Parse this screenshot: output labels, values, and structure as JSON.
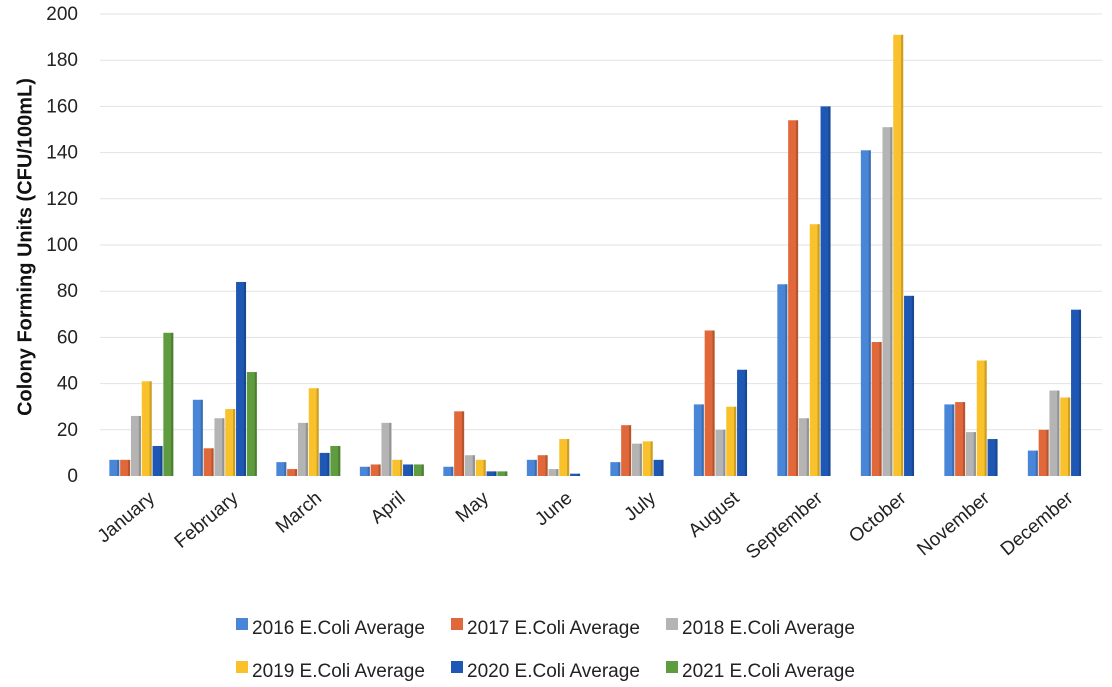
{
  "chart_data": {
    "type": "bar",
    "title": "",
    "xlabel": "",
    "ylabel": "Colony Forming Units (CFU/100mL)",
    "ylim": [
      0,
      200
    ],
    "yticks": [
      0,
      20,
      40,
      60,
      80,
      100,
      120,
      140,
      160,
      180,
      200
    ],
    "grid": true,
    "legend_position": "bottom",
    "categories": [
      "January",
      "February",
      "March",
      "April",
      "May",
      "June",
      "July",
      "August",
      "September",
      "October",
      "November",
      "December"
    ],
    "series": [
      {
        "name": "2016 E.Coli Average",
        "color": "#4a86d8",
        "values": [
          7,
          33,
          6,
          4,
          4,
          7,
          6,
          31,
          83,
          141,
          31,
          11
        ]
      },
      {
        "name": "2017 E.Coli Average",
        "color": "#e0683a",
        "values": [
          7,
          12,
          3,
          5,
          28,
          9,
          22,
          63,
          154,
          58,
          32,
          20
        ]
      },
      {
        "name": "2018 E.Coli Average",
        "color": "#b4b4b4",
        "values": [
          26,
          25,
          23,
          23,
          9,
          3,
          14,
          20,
          25,
          151,
          19,
          37
        ]
      },
      {
        "name": "2019 E.Coli Average",
        "color": "#f9c22c",
        "values": [
          41,
          29,
          38,
          7,
          7,
          16,
          15,
          30,
          109,
          191,
          50,
          34
        ]
      },
      {
        "name": "2020 E.Coli Average",
        "color": "#1f58b4",
        "values": [
          13,
          84,
          10,
          5,
          2,
          1,
          7,
          46,
          160,
          78,
          16,
          72
        ]
      },
      {
        "name": "2021 E.Coli Average",
        "color": "#5e9c3f",
        "values": [
          62,
          45,
          13,
          5,
          2,
          0,
          0,
          0,
          0,
          0,
          0,
          0
        ]
      }
    ]
  }
}
